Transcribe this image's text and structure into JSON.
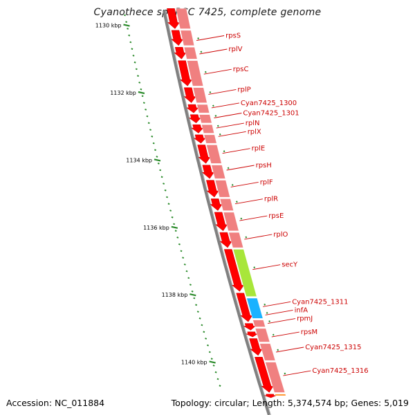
{
  "title": "Cyanothece sp. PCC 7425, complete genome",
  "accession": "Accession: NC_011884",
  "footer": {
    "topology": "Topology: circular",
    "length": "Length: 5,374,574 bp",
    "genes": "Genes: 5,019"
  },
  "colors": {
    "backbone": "#808080",
    "forward_strand": "#f08080",
    "reverse_strand": "#ff0000",
    "secY": "#a8e63a",
    "infA": "#1ab2ff",
    "cyan1316": "#ff8c1a",
    "label": "#cc0000",
    "tick": "#2a8a2a"
  },
  "scale_ticks": [
    {
      "label": "1130 kbp",
      "bp": 1130
    },
    {
      "label": "1132 kbp",
      "bp": 1132
    },
    {
      "label": "1134 kbp",
      "bp": 1134
    },
    {
      "label": "1136 kbp",
      "bp": 1136
    },
    {
      "label": "1138 kbp",
      "bp": 1138
    },
    {
      "label": "1140 kbp",
      "bp": 1140
    }
  ],
  "gene_labels": [
    {
      "name": "rpsS",
      "bp": 1130.45
    },
    {
      "name": "rplV",
      "bp": 1130.85
    },
    {
      "name": "rpsC",
      "bp": 1131.45
    },
    {
      "name": "rplP",
      "bp": 1132.05
    },
    {
      "name": "Cyan7425_1300",
      "bp": 1132.45
    },
    {
      "name": "Cyan7425_1301",
      "bp": 1132.75
    },
    {
      "name": "rplN",
      "bp": 1133.05
    },
    {
      "name": "rplX",
      "bp": 1133.3
    },
    {
      "name": "rplE",
      "bp": 1133.8
    },
    {
      "name": "rpsH",
      "bp": 1134.3
    },
    {
      "name": "rplF",
      "bp": 1134.8
    },
    {
      "name": "rplR",
      "bp": 1135.3
    },
    {
      "name": "rpsE",
      "bp": 1135.8
    },
    {
      "name": "rplO",
      "bp": 1136.35
    },
    {
      "name": "secY",
      "bp": 1137.25
    },
    {
      "name": "Cyan7425_1311",
      "bp": 1138.35
    },
    {
      "name": "infA",
      "bp": 1138.6
    },
    {
      "name": "rpmJ",
      "bp": 1138.85
    },
    {
      "name": "rpsM",
      "bp": 1139.25
    },
    {
      "name": "Cyan7425_1315",
      "bp": 1139.7
    },
    {
      "name": "Cyan7425_1316",
      "bp": 1140.4
    }
  ],
  "forward_features": [
    {
      "start": 1129.5,
      "end": 1130.1,
      "color": "pink"
    },
    {
      "start": 1130.15,
      "end": 1130.6,
      "color": "pink"
    },
    {
      "start": 1130.65,
      "end": 1131.0,
      "color": "pink"
    },
    {
      "start": 1131.05,
      "end": 1131.8,
      "color": "pink"
    },
    {
      "start": 1131.85,
      "end": 1132.3,
      "color": "pink"
    },
    {
      "start": 1132.35,
      "end": 1132.6,
      "color": "pink"
    },
    {
      "start": 1132.65,
      "end": 1132.9,
      "color": "pink"
    },
    {
      "start": 1132.95,
      "end": 1133.2,
      "color": "pink"
    },
    {
      "start": 1133.25,
      "end": 1133.5,
      "color": "pink"
    },
    {
      "start": 1133.55,
      "end": 1134.1,
      "color": "pink"
    },
    {
      "start": 1134.15,
      "end": 1134.55,
      "color": "pink"
    },
    {
      "start": 1134.6,
      "end": 1135.1,
      "color": "pink"
    },
    {
      "start": 1135.15,
      "end": 1135.5,
      "color": "pink"
    },
    {
      "start": 1135.55,
      "end": 1136.1,
      "color": "pink"
    },
    {
      "start": 1136.15,
      "end": 1136.6,
      "color": "pink"
    },
    {
      "start": 1136.65,
      "end": 1138.05,
      "color": "secY"
    },
    {
      "start": 1138.1,
      "end": 1138.7,
      "color": "infA"
    },
    {
      "start": 1138.75,
      "end": 1138.95,
      "color": "pink"
    },
    {
      "start": 1139.0,
      "end": 1139.4,
      "color": "pink"
    },
    {
      "start": 1139.45,
      "end": 1139.95,
      "color": "pink"
    },
    {
      "start": 1140.0,
      "end": 1140.9,
      "color": "pink"
    },
    {
      "start": 1140.95,
      "end": 1141.7,
      "color": "orange"
    }
  ],
  "reverse_features": [
    {
      "start": 1129.5,
      "end": 1130.1
    },
    {
      "start": 1130.15,
      "end": 1130.6
    },
    {
      "start": 1130.65,
      "end": 1131.0
    },
    {
      "start": 1131.05,
      "end": 1131.8
    },
    {
      "start": 1131.85,
      "end": 1132.3
    },
    {
      "start": 1132.35,
      "end": 1132.6
    },
    {
      "start": 1132.65,
      "end": 1132.9
    },
    {
      "start": 1132.95,
      "end": 1133.2
    },
    {
      "start": 1133.25,
      "end": 1133.5
    },
    {
      "start": 1133.55,
      "end": 1134.1
    },
    {
      "start": 1134.15,
      "end": 1134.55
    },
    {
      "start": 1134.6,
      "end": 1135.1
    },
    {
      "start": 1135.15,
      "end": 1135.5
    },
    {
      "start": 1135.55,
      "end": 1136.1
    },
    {
      "start": 1136.15,
      "end": 1136.6
    },
    {
      "start": 1136.65,
      "end": 1137.9
    },
    {
      "start": 1137.95,
      "end": 1138.8
    },
    {
      "start": 1138.85,
      "end": 1139.05
    },
    {
      "start": 1139.1,
      "end": 1139.25
    },
    {
      "start": 1139.3,
      "end": 1139.8
    },
    {
      "start": 1139.85,
      "end": 1140.9
    },
    {
      "start": 1140.95,
      "end": 1141.7
    }
  ]
}
